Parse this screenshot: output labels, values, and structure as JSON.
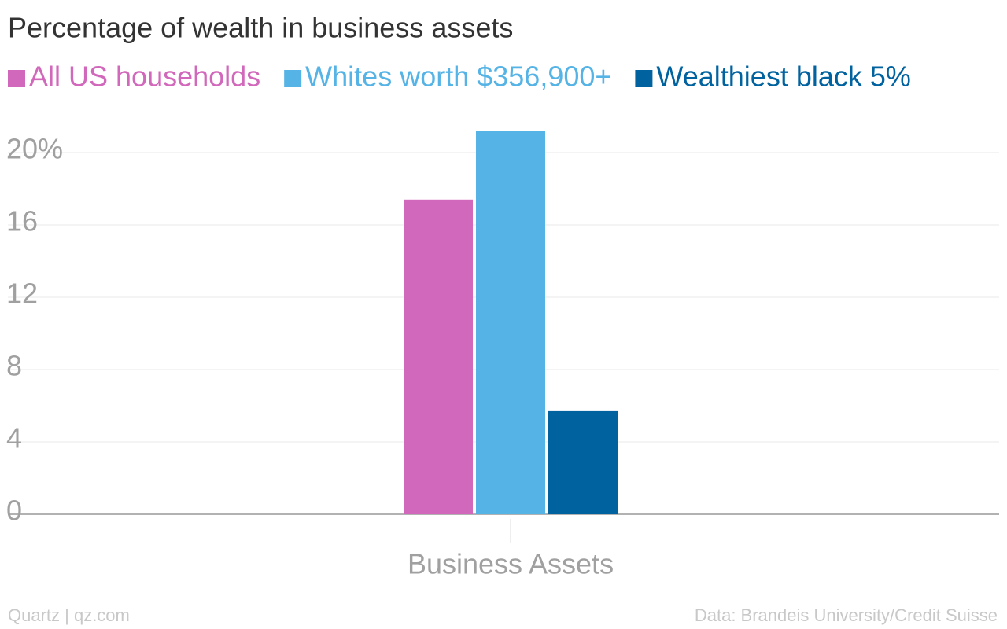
{
  "chart_data": {
    "type": "bar",
    "title": "Percentage of wealth in business assets",
    "categories": [
      "Business Assets"
    ],
    "series": [
      {
        "name": "All US households",
        "color": "#d268bb",
        "values": [
          17.4
        ]
      },
      {
        "name": "Whites worth $356,900+",
        "color": "#55b3e6",
        "values": [
          21.2
        ]
      },
      {
        "name": "Wealthiest black 5%",
        "color": "#00629f",
        "values": [
          5.7
        ]
      }
    ],
    "ylim": [
      0,
      22
    ],
    "yticks": [
      0,
      4,
      8,
      12,
      16,
      {
        "value": 20,
        "label": "20%"
      }
    ],
    "grid": true,
    "legend": "top",
    "source": "Data: Brandeis University/Credit Suisse",
    "credit": "Quartz | qz.com"
  }
}
